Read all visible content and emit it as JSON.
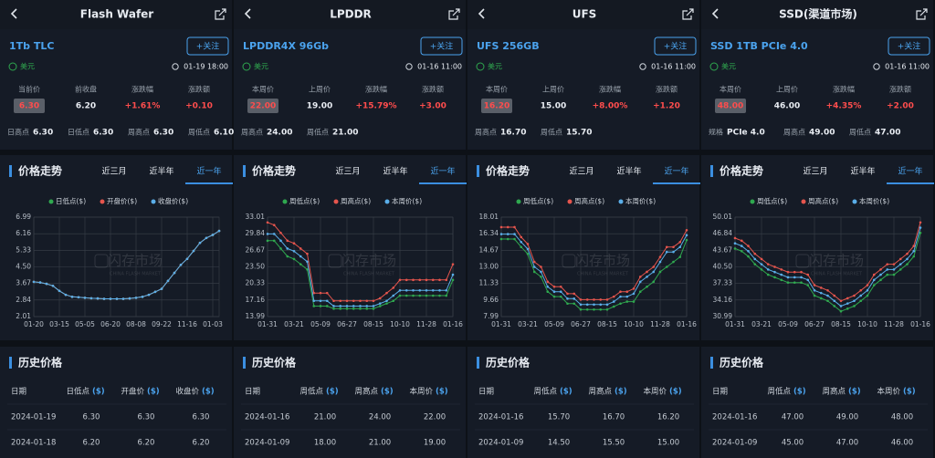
{
  "chart_data": [
    {
      "type": "line",
      "watermark": "闪存市场",
      "watermark_sub": "CHINA FLASH MARKET",
      "categories": [
        "01-20",
        null,
        null,
        null,
        "03-15",
        null,
        null,
        null,
        "05-05",
        null,
        null,
        null,
        "06-20",
        null,
        null,
        null,
        "08-08",
        null,
        null,
        null,
        "09-22",
        null,
        null,
        null,
        "11-16",
        null,
        null,
        null,
        "01-03",
        null
      ],
      "ylim": [
        2.01,
        6.99
      ],
      "yticks": [
        2.01,
        2.84,
        3.67,
        {
          "value": 4.5,
          "label": "4.50"
        },
        5.33,
        6.16,
        6.99
      ],
      "grid": true,
      "series": [
        {
          "name": "日低点($)",
          "color": "#2fa84f",
          "values": [
            3.75,
            3.72,
            3.65,
            3.55,
            3.3,
            3.1,
            3.0,
            2.98,
            2.95,
            2.93,
            2.92,
            2.9,
            2.9,
            2.9,
            2.9,
            2.92,
            2.95,
            3.0,
            3.1,
            3.25,
            3.4,
            3.8,
            4.2,
            4.6,
            4.9,
            5.3,
            5.7,
            5.95,
            6.1,
            6.3
          ]
        },
        {
          "name": "开盘价($)",
          "color": "#e5554d",
          "values": [
            3.75,
            3.72,
            3.65,
            3.55,
            3.3,
            3.1,
            3.0,
            2.98,
            2.95,
            2.93,
            2.92,
            2.9,
            2.9,
            2.9,
            2.9,
            2.92,
            2.95,
            3.0,
            3.1,
            3.25,
            3.4,
            3.8,
            4.2,
            4.6,
            4.9,
            5.3,
            5.7,
            5.95,
            6.1,
            6.3
          ]
        },
        {
          "name": "收盘价($)",
          "color": "#5aaee8",
          "values": [
            3.75,
            3.72,
            3.65,
            3.55,
            3.3,
            3.1,
            3.0,
            2.98,
            2.95,
            2.93,
            2.92,
            2.9,
            2.9,
            2.9,
            2.9,
            2.92,
            2.95,
            3.0,
            3.1,
            3.25,
            3.4,
            3.8,
            4.2,
            4.6,
            4.9,
            5.3,
            5.7,
            5.95,
            6.1,
            6.3
          ]
        }
      ]
    },
    {
      "type": "line",
      "watermark": "闪存市场",
      "watermark_sub": "CHINA FLASH MARKET",
      "categories": [
        "01-31",
        null,
        null,
        null,
        "03-21",
        null,
        null,
        null,
        "05-09",
        null,
        null,
        null,
        "06-27",
        null,
        null,
        null,
        "08-15",
        null,
        null,
        null,
        "10-10",
        null,
        null,
        null,
        "11-28",
        null,
        null,
        null,
        "01-16"
      ],
      "ylim": [
        13.99,
        33.01
      ],
      "yticks": [
        13.99,
        17.16,
        20.33,
        {
          "value": 23.5,
          "label": "23.50"
        },
        26.67,
        29.84,
        33.01
      ],
      "grid": true,
      "series": [
        {
          "name": "周低点($)",
          "color": "#2fa84f",
          "values": [
            28.5,
            28.5,
            27,
            25.5,
            25,
            24,
            23,
            16,
            16,
            16,
            15.5,
            15.5,
            15.5,
            15.5,
            15.5,
            15.5,
            15.5,
            16,
            16.5,
            17,
            18,
            18,
            18,
            18,
            18,
            18,
            18,
            18,
            21
          ]
        },
        {
          "name": "周高点($)",
          "color": "#e5554d",
          "values": [
            32,
            31.5,
            30,
            28.5,
            28,
            27,
            26,
            18.5,
            18.5,
            18.5,
            17,
            17,
            17,
            17,
            17,
            17,
            17,
            17.5,
            18.5,
            19.5,
            21,
            21,
            21,
            21,
            21,
            21,
            21,
            21,
            24
          ]
        },
        {
          "name": "本周价($)",
          "color": "#5aaee8",
          "values": [
            29.8,
            29.8,
            28.5,
            27,
            26.5,
            25.5,
            24.5,
            17,
            17,
            17,
            16,
            16,
            16,
            16,
            16,
            16,
            16,
            16.5,
            17,
            18,
            19,
            19,
            19,
            19,
            19,
            19,
            19,
            19,
            22
          ]
        }
      ]
    },
    {
      "type": "line",
      "watermark": "闪存市场",
      "watermark_sub": "CHINA FLASH MARKET",
      "categories": [
        "01-31",
        null,
        null,
        null,
        "03-21",
        null,
        null,
        null,
        "05-09",
        null,
        null,
        null,
        "06-27",
        null,
        null,
        null,
        "08-15",
        null,
        null,
        null,
        "10-10",
        null,
        null,
        null,
        "11-28",
        null,
        null,
        null,
        "01-16"
      ],
      "ylim": [
        7.99,
        18.01
      ],
      "yticks": [
        7.99,
        9.66,
        11.33,
        {
          "value": 13,
          "label": "13.00"
        },
        14.67,
        16.34,
        18.01
      ],
      "grid": true,
      "series": [
        {
          "name": "周低点($)",
          "color": "#2fa84f",
          "values": [
            15.8,
            15.8,
            15.8,
            15,
            14.3,
            12.5,
            12,
            10.5,
            10,
            10,
            9.3,
            9.3,
            8.7,
            8.7,
            8.7,
            8.7,
            8.7,
            9,
            9.3,
            9.5,
            9.5,
            10.5,
            11,
            11.5,
            12.5,
            13,
            13.5,
            14,
            15.7
          ]
        },
        {
          "name": "周高点($)",
          "color": "#e5554d",
          "values": [
            17,
            17,
            17,
            16,
            15.3,
            13.5,
            13,
            11.5,
            11,
            11,
            10.3,
            10.3,
            9.7,
            9.7,
            9.7,
            9.7,
            9.7,
            10,
            10.5,
            10.5,
            10.8,
            12,
            12.5,
            13,
            14,
            15,
            15,
            15.5,
            16.7
          ]
        },
        {
          "name": "本周价($)",
          "color": "#5aaee8",
          "values": [
            16.3,
            16.3,
            16.3,
            15.5,
            14.8,
            13,
            12.5,
            11,
            10.5,
            10.5,
            9.8,
            9.8,
            9.2,
            9.2,
            9.2,
            9.2,
            9.2,
            9.5,
            10,
            10,
            10.3,
            11.5,
            12,
            12.5,
            13.5,
            14.5,
            14.5,
            15,
            16.2
          ]
        }
      ]
    },
    {
      "type": "line",
      "watermark": "闪存市场",
      "watermark_sub": "CHINA FLASH MARKET",
      "categories": [
        "01-31",
        null,
        null,
        null,
        "03-21",
        null,
        null,
        null,
        "05-09",
        null,
        null,
        null,
        "06-27",
        null,
        null,
        null,
        "08-15",
        null,
        null,
        null,
        "10-10",
        null,
        null,
        null,
        "11-28",
        null,
        null,
        null,
        "01-16"
      ],
      "ylim": [
        30.99,
        50.01
      ],
      "yticks": [
        30.99,
        34.16,
        37.33,
        {
          "value": 40.5,
          "label": "40.50"
        },
        43.67,
        46.84,
        50.01
      ],
      "grid": true,
      "series": [
        {
          "name": "周低点($)",
          "color": "#2fa84f",
          "values": [
            44,
            43.5,
            42.5,
            41,
            40,
            39,
            38.5,
            38,
            37.5,
            37.5,
            37.5,
            37,
            35,
            34.5,
            34,
            33,
            32,
            32.5,
            33,
            34,
            35,
            37,
            38,
            39,
            39,
            40,
            41,
            42.5,
            47
          ]
        },
        {
          "name": "周高点($)",
          "color": "#e5554d",
          "values": [
            46,
            45.5,
            44.5,
            43,
            42,
            41,
            40.5,
            40,
            39.5,
            39.5,
            39.5,
            39,
            37,
            36.5,
            36,
            35,
            34,
            34.5,
            35,
            36,
            37,
            39,
            40,
            41,
            41,
            42,
            43,
            44.5,
            49
          ]
        },
        {
          "name": "本周价($)",
          "color": "#5aaee8",
          "values": [
            45,
            44.5,
            43.5,
            42,
            41,
            40,
            39.5,
            39,
            38.5,
            38.5,
            38.5,
            38,
            36,
            35.5,
            35,
            34,
            33,
            33.5,
            34,
            35,
            36,
            38,
            39,
            40,
            40,
            41,
            42,
            43.5,
            48
          ]
        }
      ]
    }
  ],
  "panels": [
    {
      "title": "Flash Wafer",
      "product": "1Tb TLC",
      "follow": "+关注",
      "currency": "美元",
      "time": "01-19 18:00",
      "stats": [
        {
          "label": "当前价",
          "value": "6.30"
        },
        {
          "label": "前收盘",
          "value": "6.20"
        },
        {
          "label": "涨跌幅",
          "value": "+1.61%"
        },
        {
          "label": "涨跌额",
          "value": "+0.10"
        }
      ],
      "extras": [
        {
          "label": "日高点",
          "value": "6.30"
        },
        {
          "label": "日低点",
          "value": "6.30"
        },
        {
          "label": "周高点",
          "value": "6.30"
        },
        {
          "label": "周低点",
          "value": "6.10"
        }
      ],
      "trend_title": "价格走势",
      "ranges": [
        "近三月",
        "近半年",
        "近一年"
      ],
      "active_range": 2,
      "history_title": "历史价格",
      "columns": [
        {
          "name": "日期"
        },
        {
          "name": "日低点",
          "unit": "($)"
        },
        {
          "name": "开盘价",
          "unit": "($)"
        },
        {
          "name": "收盘价",
          "unit": "($)"
        }
      ],
      "rows": [
        [
          "2024-01-19",
          "6.30",
          "6.30",
          "6.30"
        ],
        [
          "2024-01-18",
          "6.20",
          "6.20",
          "6.20"
        ]
      ]
    },
    {
      "title": "LPDDR",
      "product": "LPDDR4X 96Gb",
      "follow": "+关注",
      "currency": "美元",
      "time": "01-16 11:00",
      "stats": [
        {
          "label": "本周价",
          "value": "22.00"
        },
        {
          "label": "上周价",
          "value": "19.00"
        },
        {
          "label": "涨跌幅",
          "value": "+15.79%"
        },
        {
          "label": "涨跌额",
          "value": "+3.00"
        }
      ],
      "extras": [
        {
          "label": "周高点",
          "value": "24.00"
        },
        {
          "label": "周低点",
          "value": "21.00"
        }
      ],
      "trend_title": "价格走势",
      "ranges": [
        "近三月",
        "近半年",
        "近一年"
      ],
      "active_range": 2,
      "history_title": "历史价格",
      "columns": [
        {
          "name": "日期"
        },
        {
          "name": "周低点",
          "unit": "($)"
        },
        {
          "name": "周高点",
          "unit": "($)"
        },
        {
          "name": "本周价",
          "unit": "($)"
        }
      ],
      "rows": [
        [
          "2024-01-16",
          "21.00",
          "24.00",
          "22.00"
        ],
        [
          "2024-01-09",
          "18.00",
          "21.00",
          "19.00"
        ]
      ]
    },
    {
      "title": "UFS",
      "product": "UFS 256GB",
      "follow": "+关注",
      "currency": "美元",
      "time": "01-16 11:00",
      "stats": [
        {
          "label": "本周价",
          "value": "16.20"
        },
        {
          "label": "上周价",
          "value": "15.00"
        },
        {
          "label": "涨跌幅",
          "value": "+8.00%"
        },
        {
          "label": "涨跌额",
          "value": "+1.20"
        }
      ],
      "extras": [
        {
          "label": "周高点",
          "value": "16.70"
        },
        {
          "label": "周低点",
          "value": "15.70"
        }
      ],
      "trend_title": "价格走势",
      "ranges": [
        "近三月",
        "近半年",
        "近一年"
      ],
      "active_range": 2,
      "history_title": "历史价格",
      "columns": [
        {
          "name": "日期"
        },
        {
          "name": "周低点",
          "unit": "($)"
        },
        {
          "name": "周高点",
          "unit": "($)"
        },
        {
          "name": "本周价",
          "unit": "($)"
        }
      ],
      "rows": [
        [
          "2024-01-16",
          "15.70",
          "16.70",
          "16.20"
        ],
        [
          "2024-01-09",
          "14.50",
          "15.50",
          "15.00"
        ]
      ]
    },
    {
      "title": "SSD(渠道市场)",
      "product": "SSD 1TB PCIe 4.0",
      "follow": "+关注",
      "currency": "美元",
      "time": "01-16 11:00",
      "stats": [
        {
          "label": "本周价",
          "value": "48.00"
        },
        {
          "label": "上周价",
          "value": "46.00"
        },
        {
          "label": "涨跌幅",
          "value": "+4.35%"
        },
        {
          "label": "涨跌额",
          "value": "+2.00"
        }
      ],
      "extras": [
        {
          "label": "规格",
          "value": "PCIe 4.0"
        },
        {
          "label": "周高点",
          "value": "49.00"
        },
        {
          "label": "周低点",
          "value": "47.00"
        }
      ],
      "trend_title": "价格走势",
      "ranges": [
        "近三月",
        "近半年",
        "近一年"
      ],
      "active_range": 2,
      "history_title": "历史价格",
      "columns": [
        {
          "name": "日期"
        },
        {
          "name": "周低点",
          "unit": "($)"
        },
        {
          "name": "周高点",
          "unit": "($)"
        },
        {
          "name": "本周价",
          "unit": "($)"
        }
      ],
      "rows": [
        [
          "2024-01-16",
          "47.00",
          "49.00",
          "48.00"
        ],
        [
          "2024-01-09",
          "45.00",
          "47.00",
          "46.00"
        ]
      ]
    }
  ]
}
